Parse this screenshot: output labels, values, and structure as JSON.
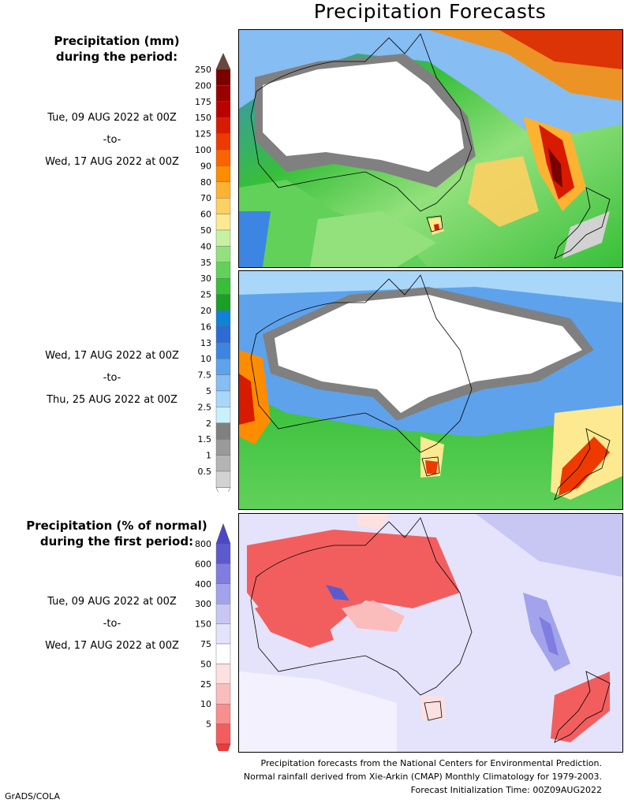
{
  "title": "Precipitation Forecasts",
  "amount_header": [
    "Precipitation (mm)",
    "during the period:"
  ],
  "percent_header": [
    "Precipitation (% of normal)",
    "during the first period:"
  ],
  "period1": {
    "start": "Tue, 09 AUG 2022 at 00Z",
    "sep": "-to-",
    "end": "Wed, 17 AUG 2022 at 00Z"
  },
  "period2": {
    "start": "Wed, 17 AUG 2022 at 00Z",
    "sep": "-to-",
    "end": "Thu, 25 AUG 2022 at 00Z"
  },
  "period3": {
    "start": "Tue, 09 AUG 2022 at 00Z",
    "sep": "-to-",
    "end": "Wed, 17 AUG 2022 at 00Z"
  },
  "mm_scale": {
    "labels": [
      "250",
      "200",
      "175",
      "150",
      "125",
      "100",
      "90",
      "80",
      "70",
      "60",
      "50",
      "40",
      "35",
      "30",
      "25",
      "20",
      "16",
      "13",
      "10",
      "7.5",
      "5",
      "2.5",
      "2",
      "1.5",
      "1",
      "0.5"
    ],
    "colors": [
      "#7a0000",
      "#9b0000",
      "#bb0000",
      "#d81b00",
      "#ee3a00",
      "#fa6300",
      "#fd8c00",
      "#fdb232",
      "#fdd062",
      "#fde98f",
      "#c6f1a3",
      "#93e17c",
      "#61d15a",
      "#37bf39",
      "#18a125",
      "#0e83d9",
      "#2c6bd7",
      "#3d85e3",
      "#5ea2ec",
      "#86bdf3",
      "#a8d7fa",
      "#c9f1fc",
      "#808080",
      "#9a9a9a",
      "#b4b4b4",
      "#d2d2d2"
    ],
    "top_color": "#6b4739",
    "bottom_color": "#ffffff"
  },
  "pct_scale": {
    "labels": [
      "800",
      "600",
      "400",
      "300",
      "150",
      "75",
      "50",
      "25",
      "10",
      "5"
    ],
    "colors": [
      "#5d5ad0",
      "#7f7ee0",
      "#a3a3ec",
      "#c8c7f4",
      "#e4e3fb",
      "#ffffff",
      "#fde0e0",
      "#fbbcbc",
      "#f88f8f",
      "#f25e5e"
    ],
    "top_color": "#4b48c8",
    "bottom_color": "#ee3a3a"
  },
  "footer": [
    "Precipitation forecasts from the National Centers for Environmental Prediction.",
    "Normal rainfall derived from Xie-Arkin (CMAP) Monthly Climatology for 1979-2003.",
    "Forecast Initialization Time: 00Z09AUG2022"
  ],
  "credit": "GrADS/COLA"
}
